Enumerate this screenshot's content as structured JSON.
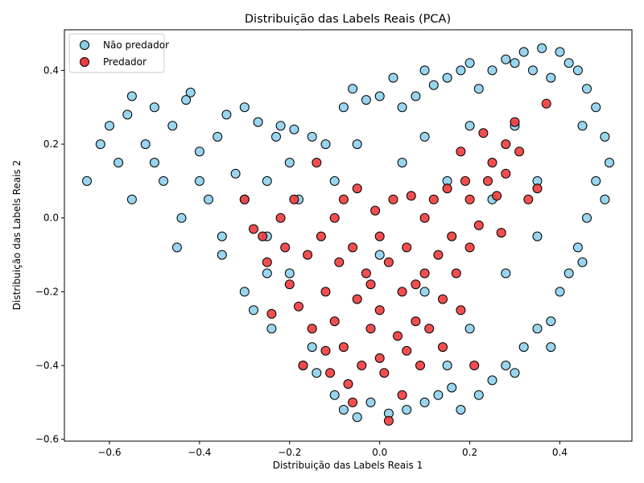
{
  "chart_data": {
    "type": "scatter",
    "title": "Distribuição das Labels Reais (PCA)",
    "xlabel": "Distribuição das Labels Reais  1",
    "ylabel": "Distribuição das Labels Reais  2",
    "xlim": [
      -0.7,
      0.56
    ],
    "ylim": [
      -0.605,
      0.51
    ],
    "xticks": [
      -0.6,
      -0.4,
      -0.2,
      0.0,
      0.2,
      0.4
    ],
    "yticks": [
      -0.6,
      -0.4,
      -0.2,
      0.0,
      0.2,
      0.4
    ],
    "xtick_labels": [
      "−0.6",
      "−0.4",
      "−0.2",
      "0.0",
      "0.2",
      "0.4"
    ],
    "ytick_labels": [
      "−0.6",
      "−0.4",
      "−0.2",
      "0.0",
      "0.2",
      "0.4"
    ],
    "grid": false,
    "legend": "top-left",
    "series": [
      {
        "name": "Não predador",
        "color": "#87ceeb",
        "edgecolor": "#000000",
        "points": [
          [
            -0.65,
            0.1
          ],
          [
            -0.62,
            0.2
          ],
          [
            -0.6,
            0.25
          ],
          [
            -0.58,
            0.15
          ],
          [
            -0.56,
            0.28
          ],
          [
            -0.55,
            0.33
          ],
          [
            -0.52,
            0.2
          ],
          [
            -0.5,
            0.3
          ],
          [
            -0.48,
            0.1
          ],
          [
            -0.46,
            0.25
          ],
          [
            -0.44,
            0.0
          ],
          [
            -0.43,
            0.32
          ],
          [
            -0.42,
            0.34
          ],
          [
            -0.4,
            0.18
          ],
          [
            -0.38,
            0.05
          ],
          [
            -0.36,
            0.22
          ],
          [
            -0.35,
            -0.05
          ],
          [
            -0.34,
            0.28
          ],
          [
            -0.32,
            0.12
          ],
          [
            -0.3,
            -0.2
          ],
          [
            -0.3,
            0.3
          ],
          [
            -0.28,
            -0.25
          ],
          [
            -0.27,
            0.26
          ],
          [
            -0.25,
            0.1
          ],
          [
            -0.24,
            -0.3
          ],
          [
            -0.23,
            0.22
          ],
          [
            -0.22,
            0.25
          ],
          [
            -0.2,
            -0.15
          ],
          [
            -0.19,
            0.24
          ],
          [
            -0.18,
            0.05
          ],
          [
            -0.17,
            -0.4
          ],
          [
            -0.15,
            0.22
          ],
          [
            -0.14,
            -0.42
          ],
          [
            -0.12,
            0.2
          ],
          [
            -0.1,
            -0.48
          ],
          [
            -0.08,
            0.3
          ],
          [
            -0.08,
            -0.52
          ],
          [
            -0.06,
            0.35
          ],
          [
            -0.05,
            -0.54
          ],
          [
            -0.03,
            0.32
          ],
          [
            -0.02,
            -0.5
          ],
          [
            0.0,
            0.33
          ],
          [
            0.02,
            -0.53
          ],
          [
            0.03,
            0.38
          ],
          [
            0.05,
            0.3
          ],
          [
            0.06,
            -0.52
          ],
          [
            0.08,
            0.33
          ],
          [
            0.1,
            0.4
          ],
          [
            0.1,
            -0.5
          ],
          [
            0.12,
            0.36
          ],
          [
            0.13,
            -0.48
          ],
          [
            0.15,
            0.38
          ],
          [
            0.16,
            -0.46
          ],
          [
            0.18,
            0.4
          ],
          [
            0.18,
            -0.52
          ],
          [
            0.2,
            0.42
          ],
          [
            0.22,
            0.35
          ],
          [
            0.22,
            -0.48
          ],
          [
            0.25,
            0.4
          ],
          [
            0.25,
            -0.44
          ],
          [
            0.28,
            0.43
          ],
          [
            0.28,
            -0.4
          ],
          [
            0.3,
            0.42
          ],
          [
            0.32,
            0.45
          ],
          [
            0.32,
            -0.35
          ],
          [
            0.34,
            0.4
          ],
          [
            0.35,
            -0.3
          ],
          [
            0.36,
            0.46
          ],
          [
            0.38,
            0.38
          ],
          [
            0.38,
            -0.28
          ],
          [
            0.4,
            0.45
          ],
          [
            0.4,
            -0.2
          ],
          [
            0.42,
            0.42
          ],
          [
            0.42,
            -0.15
          ],
          [
            0.44,
            0.4
          ],
          [
            0.44,
            -0.08
          ],
          [
            0.46,
            0.35
          ],
          [
            0.46,
            0.0
          ],
          [
            0.48,
            0.3
          ],
          [
            0.48,
            0.1
          ],
          [
            0.5,
            0.22
          ],
          [
            0.5,
            0.05
          ],
          [
            0.51,
            0.15
          ],
          [
            0.45,
            -0.12
          ],
          [
            0.38,
            -0.35
          ],
          [
            0.3,
            -0.42
          ],
          [
            0.2,
            -0.3
          ],
          [
            0.1,
            -0.2
          ],
          [
            0.0,
            -0.1
          ],
          [
            -0.1,
            0.1
          ],
          [
            -0.2,
            0.15
          ],
          [
            -0.3,
            0.05
          ],
          [
            -0.4,
            0.1
          ],
          [
            -0.5,
            0.15
          ],
          [
            -0.55,
            0.05
          ],
          [
            -0.45,
            -0.08
          ],
          [
            -0.35,
            -0.1
          ],
          [
            -0.25,
            -0.05
          ],
          [
            0.05,
            0.15
          ],
          [
            0.15,
            0.1
          ],
          [
            0.25,
            0.05
          ],
          [
            0.35,
            0.1
          ],
          [
            0.3,
            0.25
          ],
          [
            0.2,
            0.25
          ],
          [
            0.1,
            0.22
          ],
          [
            -0.05,
            0.2
          ],
          [
            -0.15,
            -0.35
          ],
          [
            -0.25,
            -0.15
          ],
          [
            0.35,
            -0.05
          ],
          [
            0.28,
            -0.15
          ],
          [
            0.45,
            0.25
          ],
          [
            0.15,
            -0.4
          ]
        ]
      },
      {
        "name": "Predador",
        "color": "#f03c3c",
        "edgecolor": "#000000",
        "points": [
          [
            -0.3,
            0.05
          ],
          [
            -0.28,
            -0.03
          ],
          [
            -0.26,
            -0.05
          ],
          [
            -0.25,
            -0.12
          ],
          [
            -0.24,
            -0.26
          ],
          [
            -0.22,
            0.0
          ],
          [
            -0.21,
            -0.08
          ],
          [
            -0.2,
            -0.18
          ],
          [
            -0.19,
            0.05
          ],
          [
            -0.18,
            -0.24
          ],
          [
            -0.17,
            -0.4
          ],
          [
            -0.16,
            -0.1
          ],
          [
            -0.15,
            -0.3
          ],
          [
            -0.14,
            0.15
          ],
          [
            -0.13,
            -0.05
          ],
          [
            -0.12,
            -0.2
          ],
          [
            -0.11,
            -0.42
          ],
          [
            -0.1,
            0.0
          ],
          [
            -0.1,
            -0.28
          ],
          [
            -0.09,
            -0.12
          ],
          [
            -0.08,
            0.05
          ],
          [
            -0.08,
            -0.35
          ],
          [
            -0.07,
            -0.45
          ],
          [
            -0.06,
            -0.08
          ],
          [
            -0.05,
            -0.22
          ],
          [
            -0.05,
            0.08
          ],
          [
            -0.04,
            -0.4
          ],
          [
            -0.03,
            -0.15
          ],
          [
            -0.02,
            -0.3
          ],
          [
            -0.01,
            0.02
          ],
          [
            0.0,
            -0.05
          ],
          [
            0.0,
            -0.25
          ],
          [
            0.01,
            -0.42
          ],
          [
            0.02,
            -0.55
          ],
          [
            0.02,
            -0.12
          ],
          [
            0.03,
            0.05
          ],
          [
            0.04,
            -0.32
          ],
          [
            0.05,
            -0.2
          ],
          [
            0.05,
            -0.48
          ],
          [
            0.06,
            -0.08
          ],
          [
            0.07,
            0.06
          ],
          [
            0.08,
            -0.28
          ],
          [
            0.09,
            -0.4
          ],
          [
            0.1,
            -0.15
          ],
          [
            0.1,
            0.0
          ],
          [
            0.11,
            -0.3
          ],
          [
            0.12,
            0.05
          ],
          [
            0.13,
            -0.1
          ],
          [
            0.14,
            -0.22
          ],
          [
            0.14,
            -0.35
          ],
          [
            0.15,
            0.08
          ],
          [
            0.16,
            -0.05
          ],
          [
            0.17,
            -0.15
          ],
          [
            0.18,
            0.18
          ],
          [
            0.18,
            -0.25
          ],
          [
            0.19,
            0.1
          ],
          [
            0.2,
            -0.08
          ],
          [
            0.2,
            0.05
          ],
          [
            0.21,
            -0.4
          ],
          [
            0.22,
            -0.02
          ],
          [
            0.23,
            0.23
          ],
          [
            0.24,
            0.1
          ],
          [
            0.25,
            0.15
          ],
          [
            0.26,
            0.06
          ],
          [
            0.27,
            -0.04
          ],
          [
            0.28,
            0.2
          ],
          [
            0.28,
            0.12
          ],
          [
            0.3,
            0.26
          ],
          [
            0.31,
            0.18
          ],
          [
            0.33,
            0.05
          ],
          [
            0.35,
            0.08
          ],
          [
            0.37,
            0.31
          ],
          [
            -0.06,
            -0.5
          ],
          [
            0.0,
            -0.38
          ],
          [
            -0.12,
            -0.36
          ],
          [
            0.06,
            -0.36
          ],
          [
            -0.02,
            -0.18
          ],
          [
            0.08,
            -0.18
          ]
        ]
      }
    ]
  }
}
